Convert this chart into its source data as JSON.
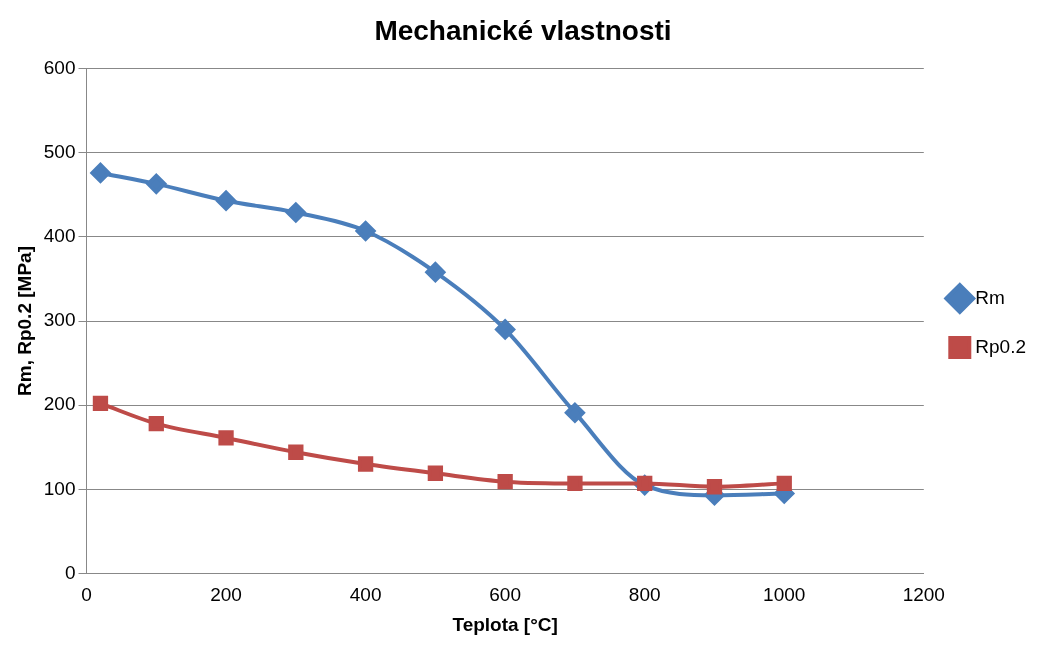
{
  "chart_data": {
    "type": "line",
    "title": "Mechanické vlastnosti",
    "xlabel": "Teplota [°C]",
    "ylabel": "Rm, Rp0.2 [MPa]",
    "x": [
      20,
      100,
      200,
      300,
      400,
      500,
      600,
      700,
      800,
      900,
      1000
    ],
    "series": [
      {
        "name": "Rm",
        "color": "#4a7ebb",
        "marker": "diamond",
        "values": [
          476,
          463,
          443,
          429,
          407,
          358,
          290,
          191,
          105,
          93,
          95
        ]
      },
      {
        "name": "Rp0.2",
        "color": "#be4b48",
        "marker": "square",
        "values": [
          202,
          178,
          161,
          144,
          130,
          119,
          109,
          107,
          107,
          103,
          107
        ]
      }
    ],
    "xlim": [
      0,
      1200
    ],
    "xticks": [
      0,
      200,
      400,
      600,
      800,
      1000,
      1200
    ],
    "ylim": [
      0,
      600
    ],
    "yticks": [
      0,
      100,
      200,
      300,
      400,
      500,
      600
    ],
    "grid": "y",
    "legend": "right",
    "line_style": "solid"
  }
}
